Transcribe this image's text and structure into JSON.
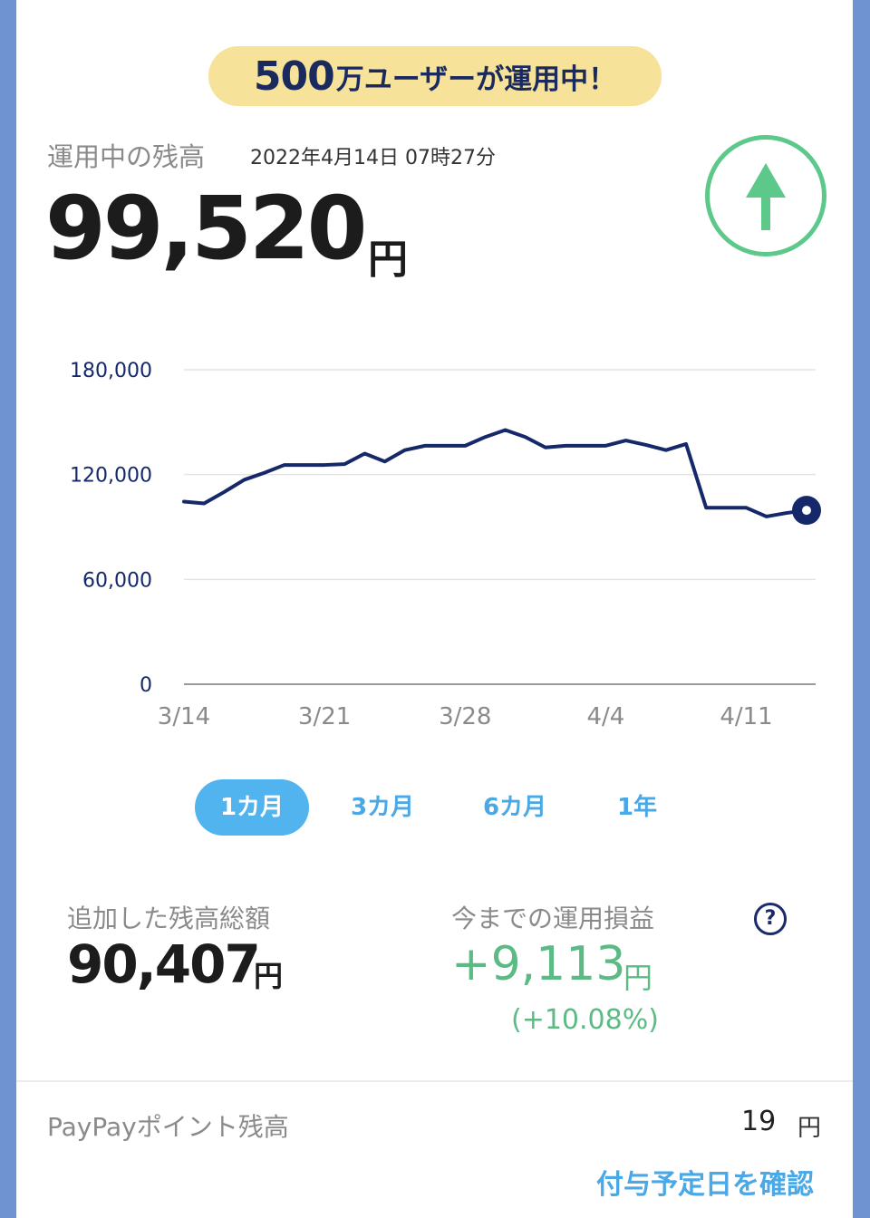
{
  "banner": {
    "count": "500",
    "text": "万ユーザーが運用中！"
  },
  "balance": {
    "label": "運用中の残高",
    "timestamp": "2022年4月14日 07時27分",
    "value": "99,520",
    "unit": "円",
    "trend_icon": "arrow-up-icon"
  },
  "chart_data": {
    "type": "line",
    "y_ticks": [
      "180,000",
      "120,000",
      "60,000",
      "0"
    ],
    "x_ticks": [
      "3/14",
      "3/21",
      "3/28",
      "4/4",
      "4/11"
    ],
    "ylim": [
      0,
      180000
    ],
    "x": [
      "3/14",
      "3/15",
      "3/16",
      "3/17",
      "3/18",
      "3/19",
      "3/20",
      "3/21",
      "3/22",
      "3/23",
      "3/24",
      "3/25",
      "3/26",
      "3/27",
      "3/28",
      "3/29",
      "3/30",
      "3/31",
      "4/1",
      "4/2",
      "4/3",
      "4/4",
      "4/5",
      "4/6",
      "4/7",
      "4/8",
      "4/9",
      "4/10",
      "4/11",
      "4/12",
      "4/13",
      "4/14"
    ],
    "values": [
      104500,
      103500,
      110000,
      117000,
      121000,
      125500,
      125500,
      125500,
      126000,
      132000,
      127500,
      134000,
      136500,
      136500,
      136500,
      141500,
      145500,
      141500,
      135500,
      136500,
      136500,
      136500,
      139500,
      137000,
      134000,
      137500,
      101000,
      101000,
      101000,
      96000,
      98000,
      99520
    ],
    "grid": true,
    "line_color": "#15286a"
  },
  "tabs": [
    {
      "label": "1カ月",
      "active": true
    },
    {
      "label": "3カ月",
      "active": false
    },
    {
      "label": "6カ月",
      "active": false
    },
    {
      "label": "1年",
      "active": false
    }
  ],
  "added": {
    "label": "追加した残高総額",
    "value": "90,407",
    "unit": "円"
  },
  "profit": {
    "label": "今までの運用損益",
    "value": "+9,113",
    "unit": "円",
    "percent": "(+10.08%)",
    "help_icon": "question-icon",
    "help_glyph": "?",
    "color": "#5cbb85"
  },
  "points": {
    "label": "PayPayポイント残高",
    "value": "19",
    "unit": "円"
  },
  "confirm_link": "付与予定日を確認"
}
